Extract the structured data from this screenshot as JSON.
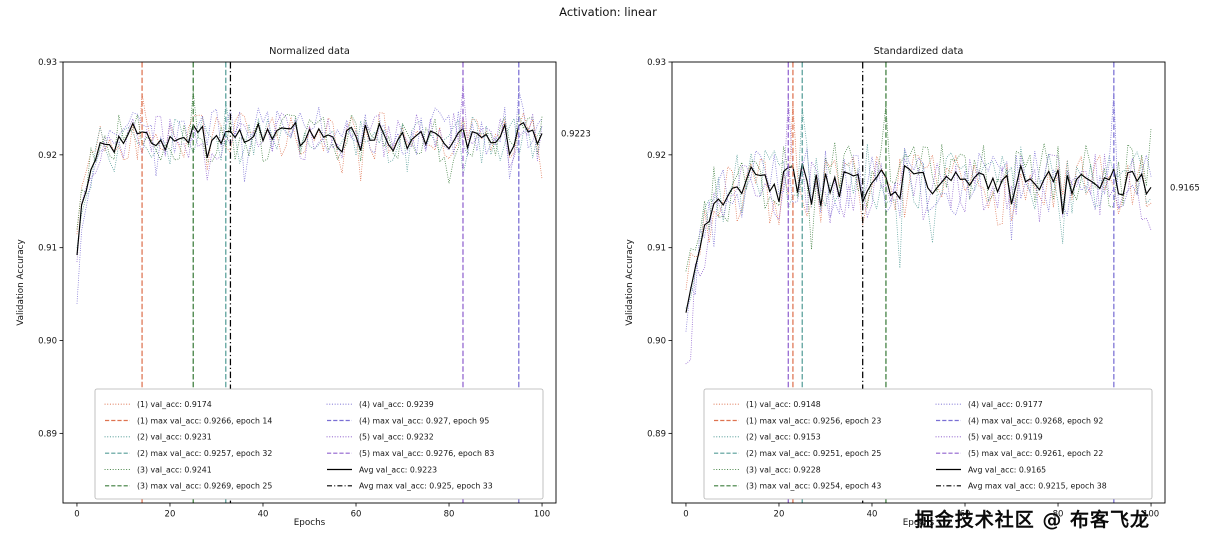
{
  "figure": {
    "title": "Activation: linear",
    "watermark": "掘金技术社区 @ 布客飞龙",
    "background": "#ffffff"
  },
  "chart_data": [
    {
      "type": "line",
      "title": "Normalized data",
      "xlabel": "Epochs",
      "ylabel": "Validation Accuracy",
      "xlim": [
        -3,
        103
      ],
      "ylim": [
        0.8825,
        0.93
      ],
      "xticks": [
        0,
        20,
        40,
        60,
        80,
        100
      ],
      "ytick_values": [
        0.89,
        0.9,
        0.91,
        0.92,
        0.93
      ],
      "ytick_labels": [
        "0.89",
        "0.90",
        "0.91",
        "0.92",
        "0.93"
      ],
      "annotation": "0.9223",
      "legend_loc": "lower center",
      "grid": false,
      "seed": 42,
      "rise_tau": 2.0,
      "noise": 0.0026,
      "plateau": 0.9218,
      "series": [
        {
          "name": "(1)",
          "color": "#de7350",
          "start": 0.9115,
          "final": 0.9174,
          "max": 0.9266,
          "max_epoch": 14,
          "legend_val": "(1) val_acc: 0.9174",
          "legend_max": "(1) max val_acc: 0.9266, epoch 14"
        },
        {
          "name": "(2)",
          "color": "#569e99",
          "start": 0.91,
          "final": 0.9231,
          "max": 0.9257,
          "max_epoch": 32,
          "legend_val": "(2) val_acc: 0.9231",
          "legend_max": "(2) max val_acc: 0.9257, epoch 32"
        },
        {
          "name": "(3)",
          "color": "#3c7d3c",
          "start": 0.912,
          "final": 0.9241,
          "max": 0.9269,
          "max_epoch": 25,
          "legend_val": "(3) val_acc: 0.9241",
          "legend_max": "(3) max val_acc: 0.9269, epoch 25"
        },
        {
          "name": "(4)",
          "color": "#7a6fd4",
          "start": 0.904,
          "final": 0.9239,
          "max": 0.927,
          "max_epoch": 95,
          "legend_val": "(4) val_acc: 0.9239",
          "legend_max": "(4) max val_acc: 0.927, epoch 95"
        },
        {
          "name": "(5)",
          "color": "#9163cf",
          "start": 0.9085,
          "final": 0.9232,
          "max": 0.9276,
          "max_epoch": 83,
          "legend_val": "(5) val_acc: 0.9232",
          "legend_max": "(5) max val_acc: 0.9276, epoch 83"
        }
      ],
      "avg": {
        "color": "#000000",
        "final": 0.9223,
        "max": 0.925,
        "max_epoch": 33,
        "legend_val": "Avg val_acc: 0.9223",
        "legend_max": "Avg max val_acc: 0.925, epoch 33"
      }
    },
    {
      "type": "line",
      "title": "Standardized data",
      "xlabel": "Epochs",
      "ylabel": "Validation Accuracy",
      "xlim": [
        -3,
        103
      ],
      "ylim": [
        0.8825,
        0.93
      ],
      "xticks": [
        0,
        20,
        40,
        60,
        80,
        100
      ],
      "ytick_values": [
        0.89,
        0.9,
        0.91,
        0.92,
        0.93
      ],
      "ytick_labels": [
        "0.89",
        "0.90",
        "0.91",
        "0.92",
        "0.93"
      ],
      "annotation": "0.9165",
      "legend_loc": "lower center",
      "grid": false,
      "seed": 7,
      "rise_tau": 4.0,
      "noise": 0.0038,
      "plateau": 0.917,
      "series": [
        {
          "name": "(1)",
          "color": "#de7350",
          "start": 0.9055,
          "final": 0.9148,
          "max": 0.9256,
          "max_epoch": 23,
          "legend_val": "(1) val_acc: 0.9148",
          "legend_max": "(1) max val_acc: 0.9256, epoch 23"
        },
        {
          "name": "(2)",
          "color": "#569e99",
          "start": 0.9035,
          "final": 0.9153,
          "max": 0.9251,
          "max_epoch": 25,
          "legend_val": "(2) val_acc: 0.9153",
          "legend_max": "(2) max val_acc: 0.9251, epoch 25"
        },
        {
          "name": "(3)",
          "color": "#3c7d3c",
          "start": 0.9075,
          "final": 0.9228,
          "max": 0.9254,
          "max_epoch": 43,
          "legend_val": "(3) val_acc: 0.9228",
          "legend_max": "(3) max val_acc: 0.9254, epoch 43"
        },
        {
          "name": "(4)",
          "color": "#7a6fd4",
          "start": 0.901,
          "final": 0.9177,
          "max": 0.9268,
          "max_epoch": 92,
          "legend_val": "(4) val_acc: 0.9177",
          "legend_max": "(4) max val_acc: 0.9268, epoch 92"
        },
        {
          "name": "(5)",
          "color": "#9163cf",
          "start": 0.8975,
          "final": 0.9119,
          "max": 0.9261,
          "max_epoch": 22,
          "legend_val": "(5) val_acc: 0.9119",
          "legend_max": "(5) max val_acc: 0.9261, epoch 22"
        }
      ],
      "avg": {
        "color": "#000000",
        "final": 0.9165,
        "max": 0.9215,
        "max_epoch": 38,
        "legend_val": "Avg val_acc: 0.9165",
        "legend_max": "Avg max val_acc: 0.9215, epoch 38"
      }
    }
  ]
}
